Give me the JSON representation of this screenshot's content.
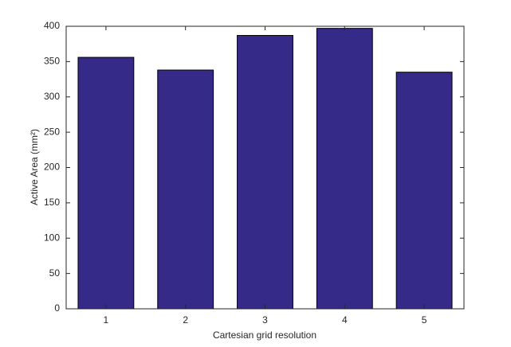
{
  "chart_data": {
    "type": "bar",
    "x_label": "Cartesian grid resolution",
    "y_label": "Active Area (mm²)",
    "categories": [
      "1",
      "2",
      "3",
      "4",
      "5"
    ],
    "values": [
      356,
      338,
      387,
      397,
      335
    ],
    "color": "#352a87",
    "ylim": [
      0,
      400
    ],
    "yticks": [
      0,
      50,
      100,
      150,
      200,
      250,
      300,
      350,
      400
    ]
  }
}
